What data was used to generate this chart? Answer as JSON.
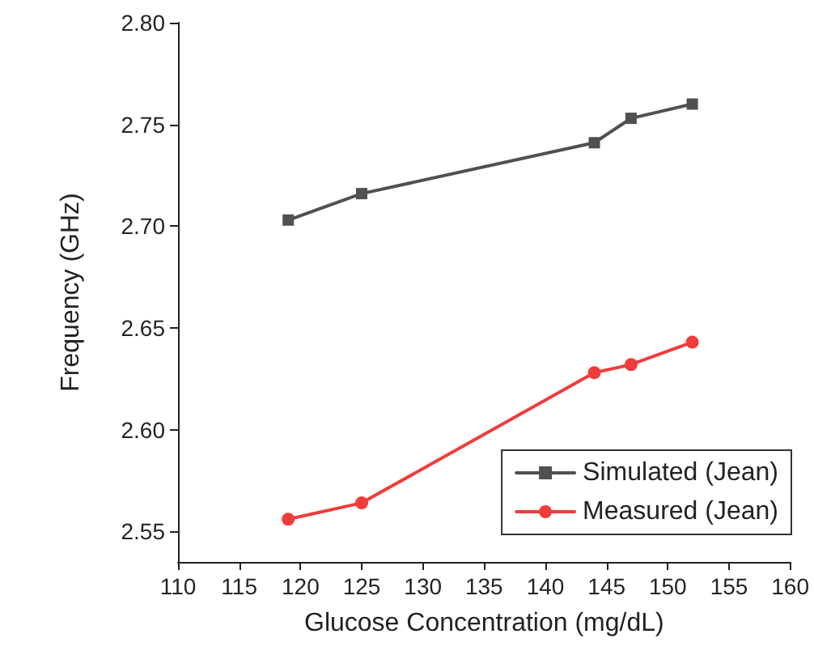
{
  "chart_data": {
    "type": "line",
    "xlabel": "Glucose Concentration (mg/dL)",
    "ylabel": "Frequency (GHz)",
    "x": [
      119,
      125,
      144,
      147,
      152
    ],
    "series": [
      {
        "name": "Simulated (Jean)",
        "color": "#505050",
        "marker": "square",
        "values": [
          2.703,
          2.716,
          2.741,
          2.753,
          2.76
        ]
      },
      {
        "name": "Measured (Jean)",
        "color": "#f03c3c",
        "marker": "circle",
        "values": [
          2.556,
          2.564,
          2.628,
          2.632,
          2.643
        ]
      }
    ],
    "xlim": [
      110,
      160
    ],
    "xticks": [
      110,
      115,
      120,
      125,
      130,
      135,
      140,
      145,
      150,
      155,
      160
    ],
    "ylim": [
      2.535,
      2.8
    ],
    "yticks": [
      {
        "value": 2.55,
        "label": "2.55"
      },
      {
        "value": 2.6,
        "label": "2.60"
      },
      {
        "value": 2.65,
        "label": "2.65"
      },
      {
        "value": 2.7,
        "label": "2.70"
      },
      {
        "value": 2.75,
        "label": "2.75"
      },
      {
        "value": 2.8,
        "label": "2.80"
      }
    ],
    "grid": false,
    "legend": "bottom right",
    "line_style": "solid"
  }
}
